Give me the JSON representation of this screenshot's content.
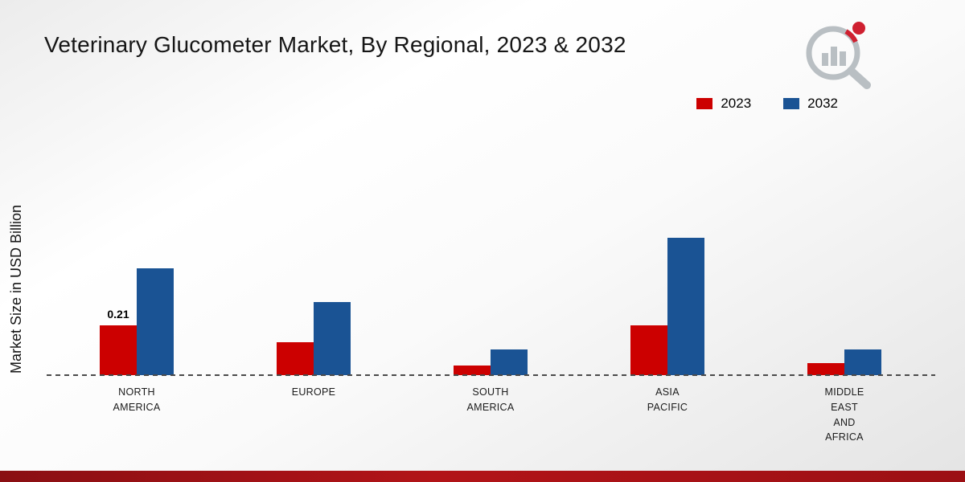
{
  "chart_data": {
    "type": "bar",
    "title": "Veterinary Glucometer Market, By Regional, 2023 & 2032",
    "xlabel": "",
    "ylabel": "Market Size in USD Billion",
    "ylim": [
      0,
      1.0
    ],
    "grid": false,
    "legend_position": "top-right",
    "baseline_style": "dashed",
    "categories": [
      [
        "NORTH",
        "AMERICA"
      ],
      [
        "EUROPE"
      ],
      [
        "SOUTH",
        "AMERICA"
      ],
      [
        "ASIA",
        "PACIFIC"
      ],
      [
        "MIDDLE",
        "EAST",
        "AND",
        "AFRICA"
      ]
    ],
    "series": [
      {
        "name": "2023",
        "color": "#cc0000",
        "values": [
          0.21,
          0.14,
          0.04,
          0.21,
          0.05
        ],
        "value_labels": [
          "0.21",
          "",
          "",
          "",
          ""
        ]
      },
      {
        "name": "2032",
        "color": "#1a5394",
        "values": [
          0.45,
          0.31,
          0.11,
          0.58,
          0.11
        ],
        "value_labels": [
          "",
          "",
          "",
          "",
          ""
        ]
      }
    ]
  },
  "footer": {
    "colors": [
      "#8a0f13",
      "#b21418",
      "#9c1014"
    ]
  },
  "logo": {
    "ring_color": "#b9bfc3",
    "accent_color": "#cf2030"
  }
}
